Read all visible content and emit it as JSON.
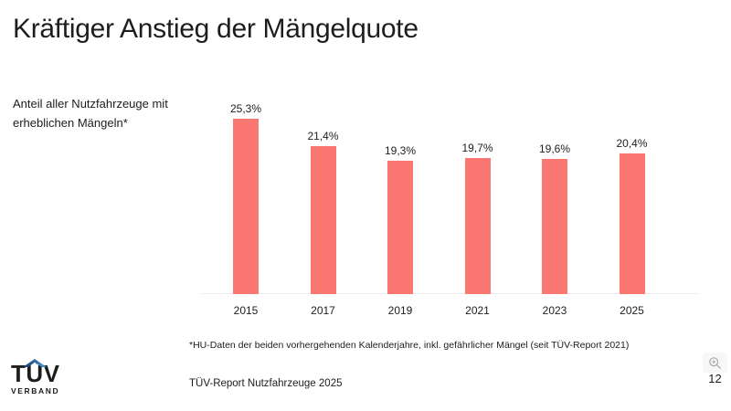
{
  "slide": {
    "title": "Kräftiger Anstieg der Mängelquote",
    "subtitle_lines": [
      "Anteil aller Nutzfahrzeuge mit",
      "erheblichen Mängeln*"
    ],
    "footnote": "*HU-Daten der beiden vorhergehenden Kalenderjahre, inkl. gefährlicher Mängel  (seit TÜV-Report 2021)",
    "source": "TÜV-Report Nutzfahrzeuge 2025",
    "page_number": "12"
  },
  "logo": {
    "brand": "TÜV",
    "suffix": "VERBAND"
  },
  "icons": {
    "zoom_button": "magnifier-plus-icon"
  },
  "colors": {
    "bar": "#FB7872",
    "text": "#1D1D1B",
    "axis_line": "#ECECEC",
    "background": "#FFFFFF",
    "logo_roof_dark": "#14375F",
    "logo_roof_light": "#4E9BD8",
    "icon_gray": "#A9A9A9"
  },
  "chart_data": {
    "type": "bar",
    "categories": [
      "2015",
      "2017",
      "2019",
      "2021",
      "2023",
      "2025"
    ],
    "values": [
      25.3,
      21.4,
      19.3,
      19.7,
      19.6,
      20.4
    ],
    "value_labels": [
      "25,3%",
      "21,4%",
      "19,3%",
      "19,7%",
      "19,6%",
      "20,4%"
    ],
    "title": "Kräftiger Anstieg der Mängelquote",
    "xlabel": "",
    "ylabel": "Anteil aller Nutzfahrzeuge mit erheblichen Mängeln (%)",
    "ylim": [
      0,
      28
    ],
    "grid": false,
    "legend": false,
    "bar_color": "#FB7872",
    "decimal_separator": ","
  }
}
